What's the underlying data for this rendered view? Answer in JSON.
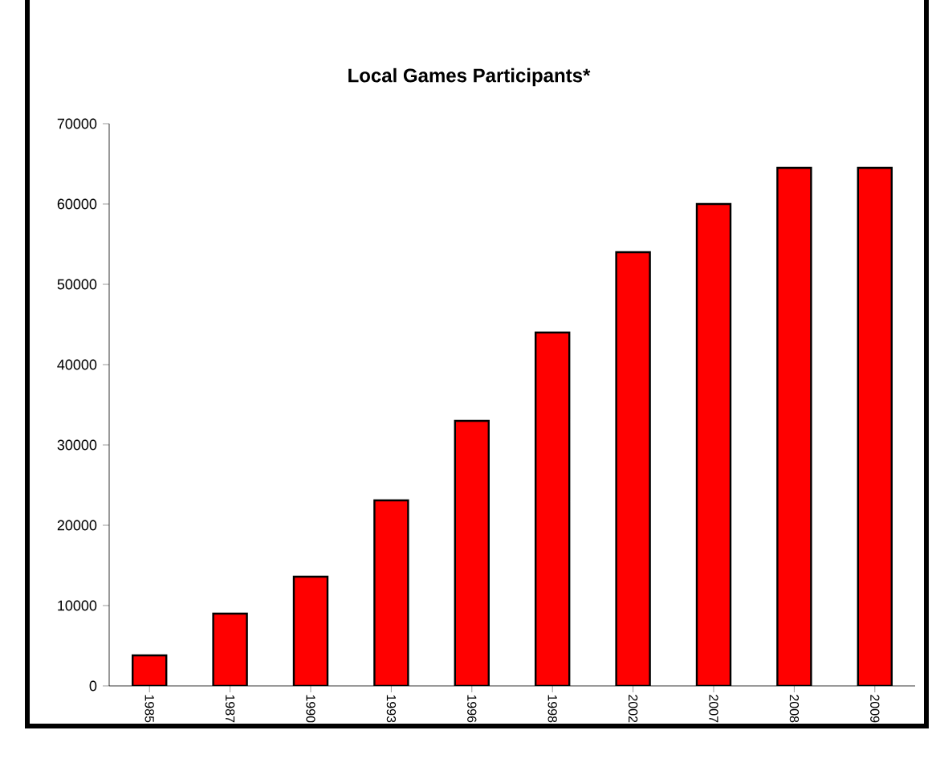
{
  "chart_data": {
    "type": "bar",
    "title": "Local Games Participants*",
    "categories": [
      "1985",
      "1987",
      "1990",
      "1993",
      "1996",
      "1998",
      "2002",
      "2007",
      "2008",
      "2009"
    ],
    "values": [
      3800,
      9000,
      13600,
      23100,
      33000,
      44000,
      54000,
      60000,
      64500,
      64500
    ],
    "color": "#ff0000",
    "ylim": [
      0,
      70000
    ],
    "yticks": [
      0,
      10000,
      20000,
      30000,
      40000,
      50000,
      60000,
      70000
    ],
    "grid": false
  }
}
